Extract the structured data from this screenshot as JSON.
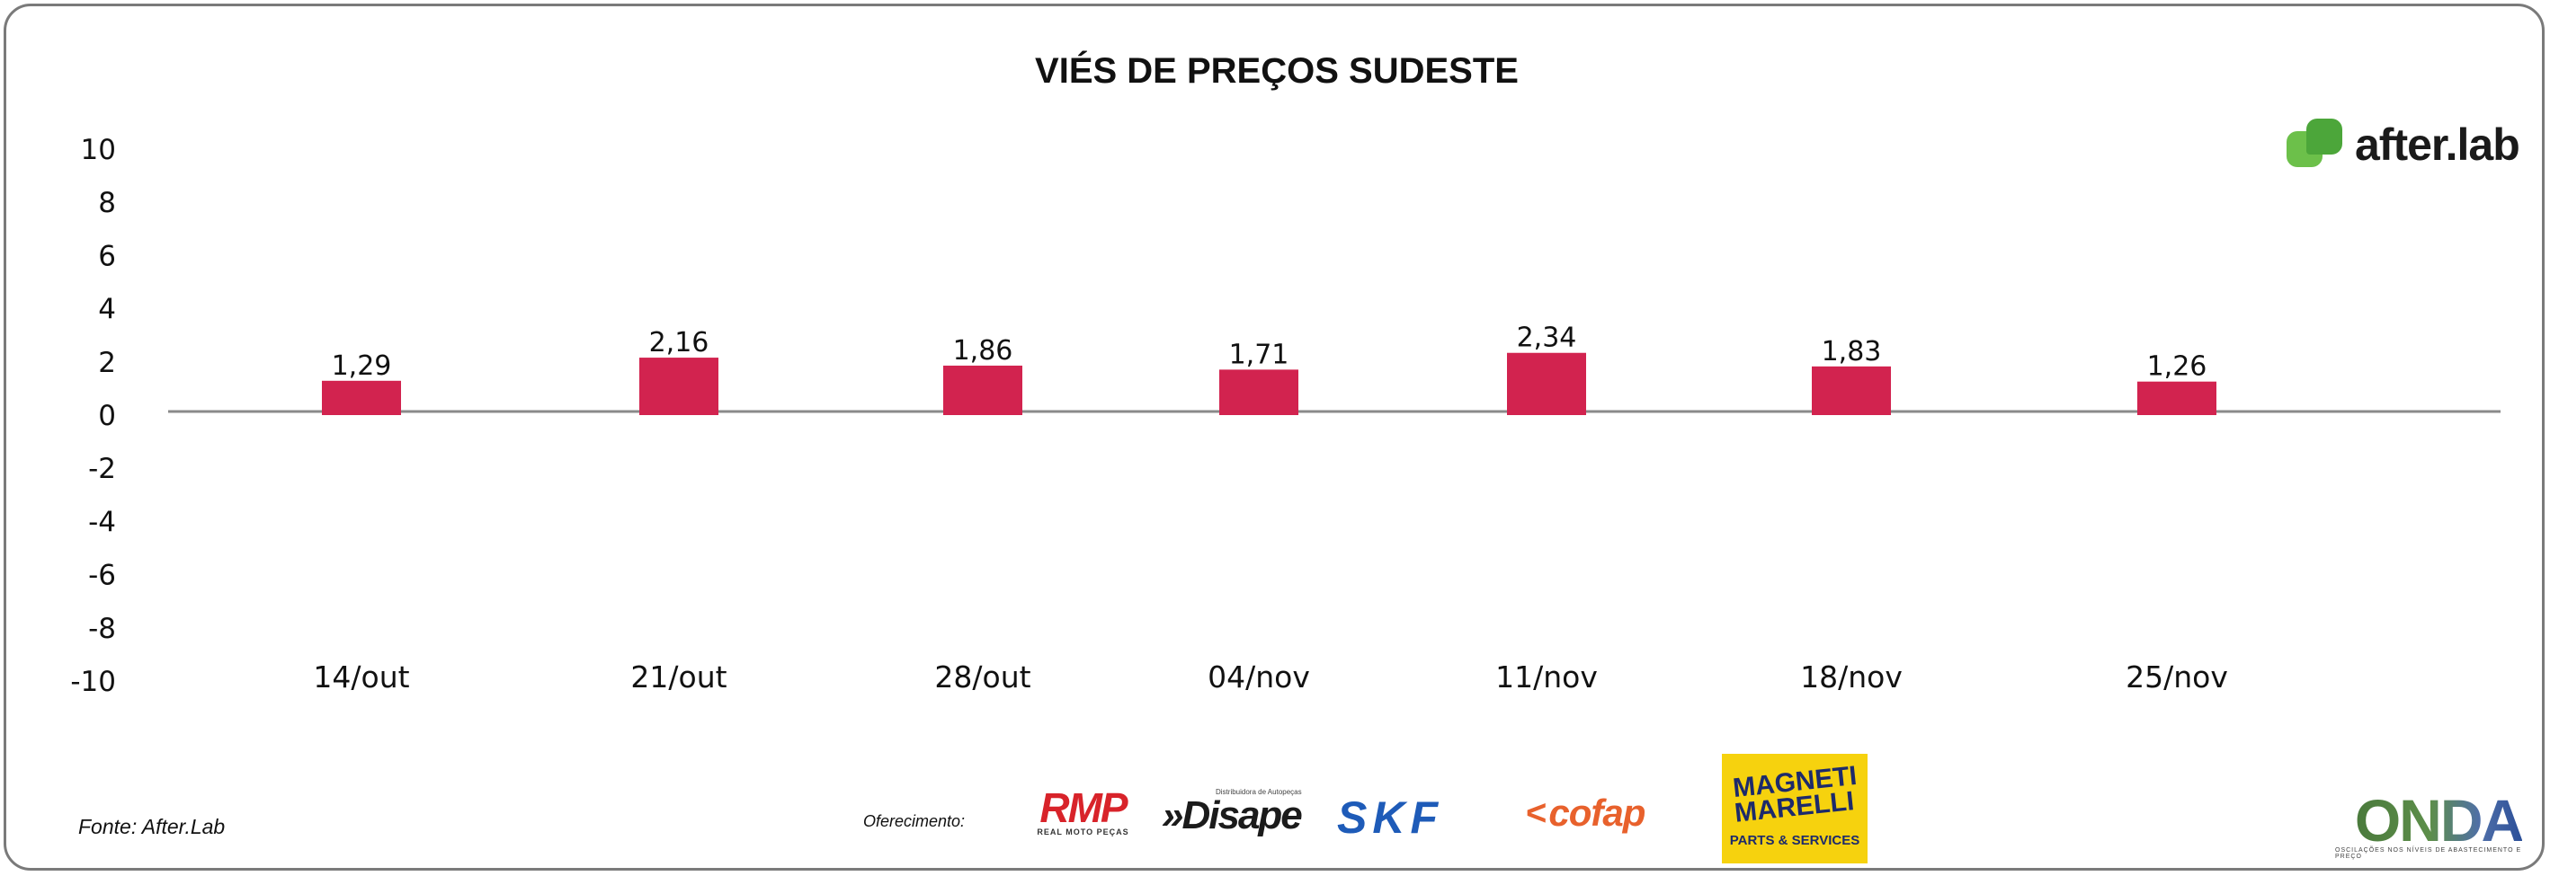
{
  "chart_data": {
    "type": "bar",
    "title": "VIÉS DE PREÇOS SUDESTE",
    "categories": [
      "14/out",
      "21/out",
      "28/out",
      "04/nov",
      "11/nov",
      "18/nov",
      "25/nov"
    ],
    "values": [
      1.29,
      2.16,
      1.86,
      1.71,
      2.34,
      1.83,
      1.26
    ],
    "value_labels": [
      "1,29",
      "2,16",
      "1,86",
      "1,71",
      "2,34",
      "1,83",
      "1,26"
    ],
    "y_ticks": [
      10,
      8,
      6,
      4,
      2,
      0,
      -2,
      -4,
      -6,
      -8,
      -10
    ],
    "ylim": [
      -10,
      10
    ],
    "bar_color": "#d2234f",
    "axis_color": "#8a8a8a",
    "grid": false,
    "legend": "none"
  },
  "source_text": "Fonte: After.Lab",
  "sponsor_label": "Oferecimento:",
  "logos": {
    "afterlab": {
      "icon": "afterlab-logo-icon",
      "text": "after.lab"
    },
    "rmp": {
      "text": "RMP",
      "subtext": "REAL MOTO PEÇAS",
      "color": "#d8232a"
    },
    "disape": {
      "text": "»Disape",
      "subtext": "Distribuidora de Autopeças"
    },
    "skf": {
      "text": "SKF",
      "color": "#1e5bb8"
    },
    "cofap": {
      "text": "cofap",
      "color": "#e8612c"
    },
    "marelli": {
      "text_line1": "MAGNETI",
      "text_line2": "MARELLI",
      "subtext": "PARTS & SERVICES",
      "bg": "#f6d20e"
    },
    "onda": {
      "text": "ONDA",
      "subtext": "OSCILAÇÕES NOS NÍVEIS DE ABASTECIMENTO E PREÇO"
    }
  }
}
